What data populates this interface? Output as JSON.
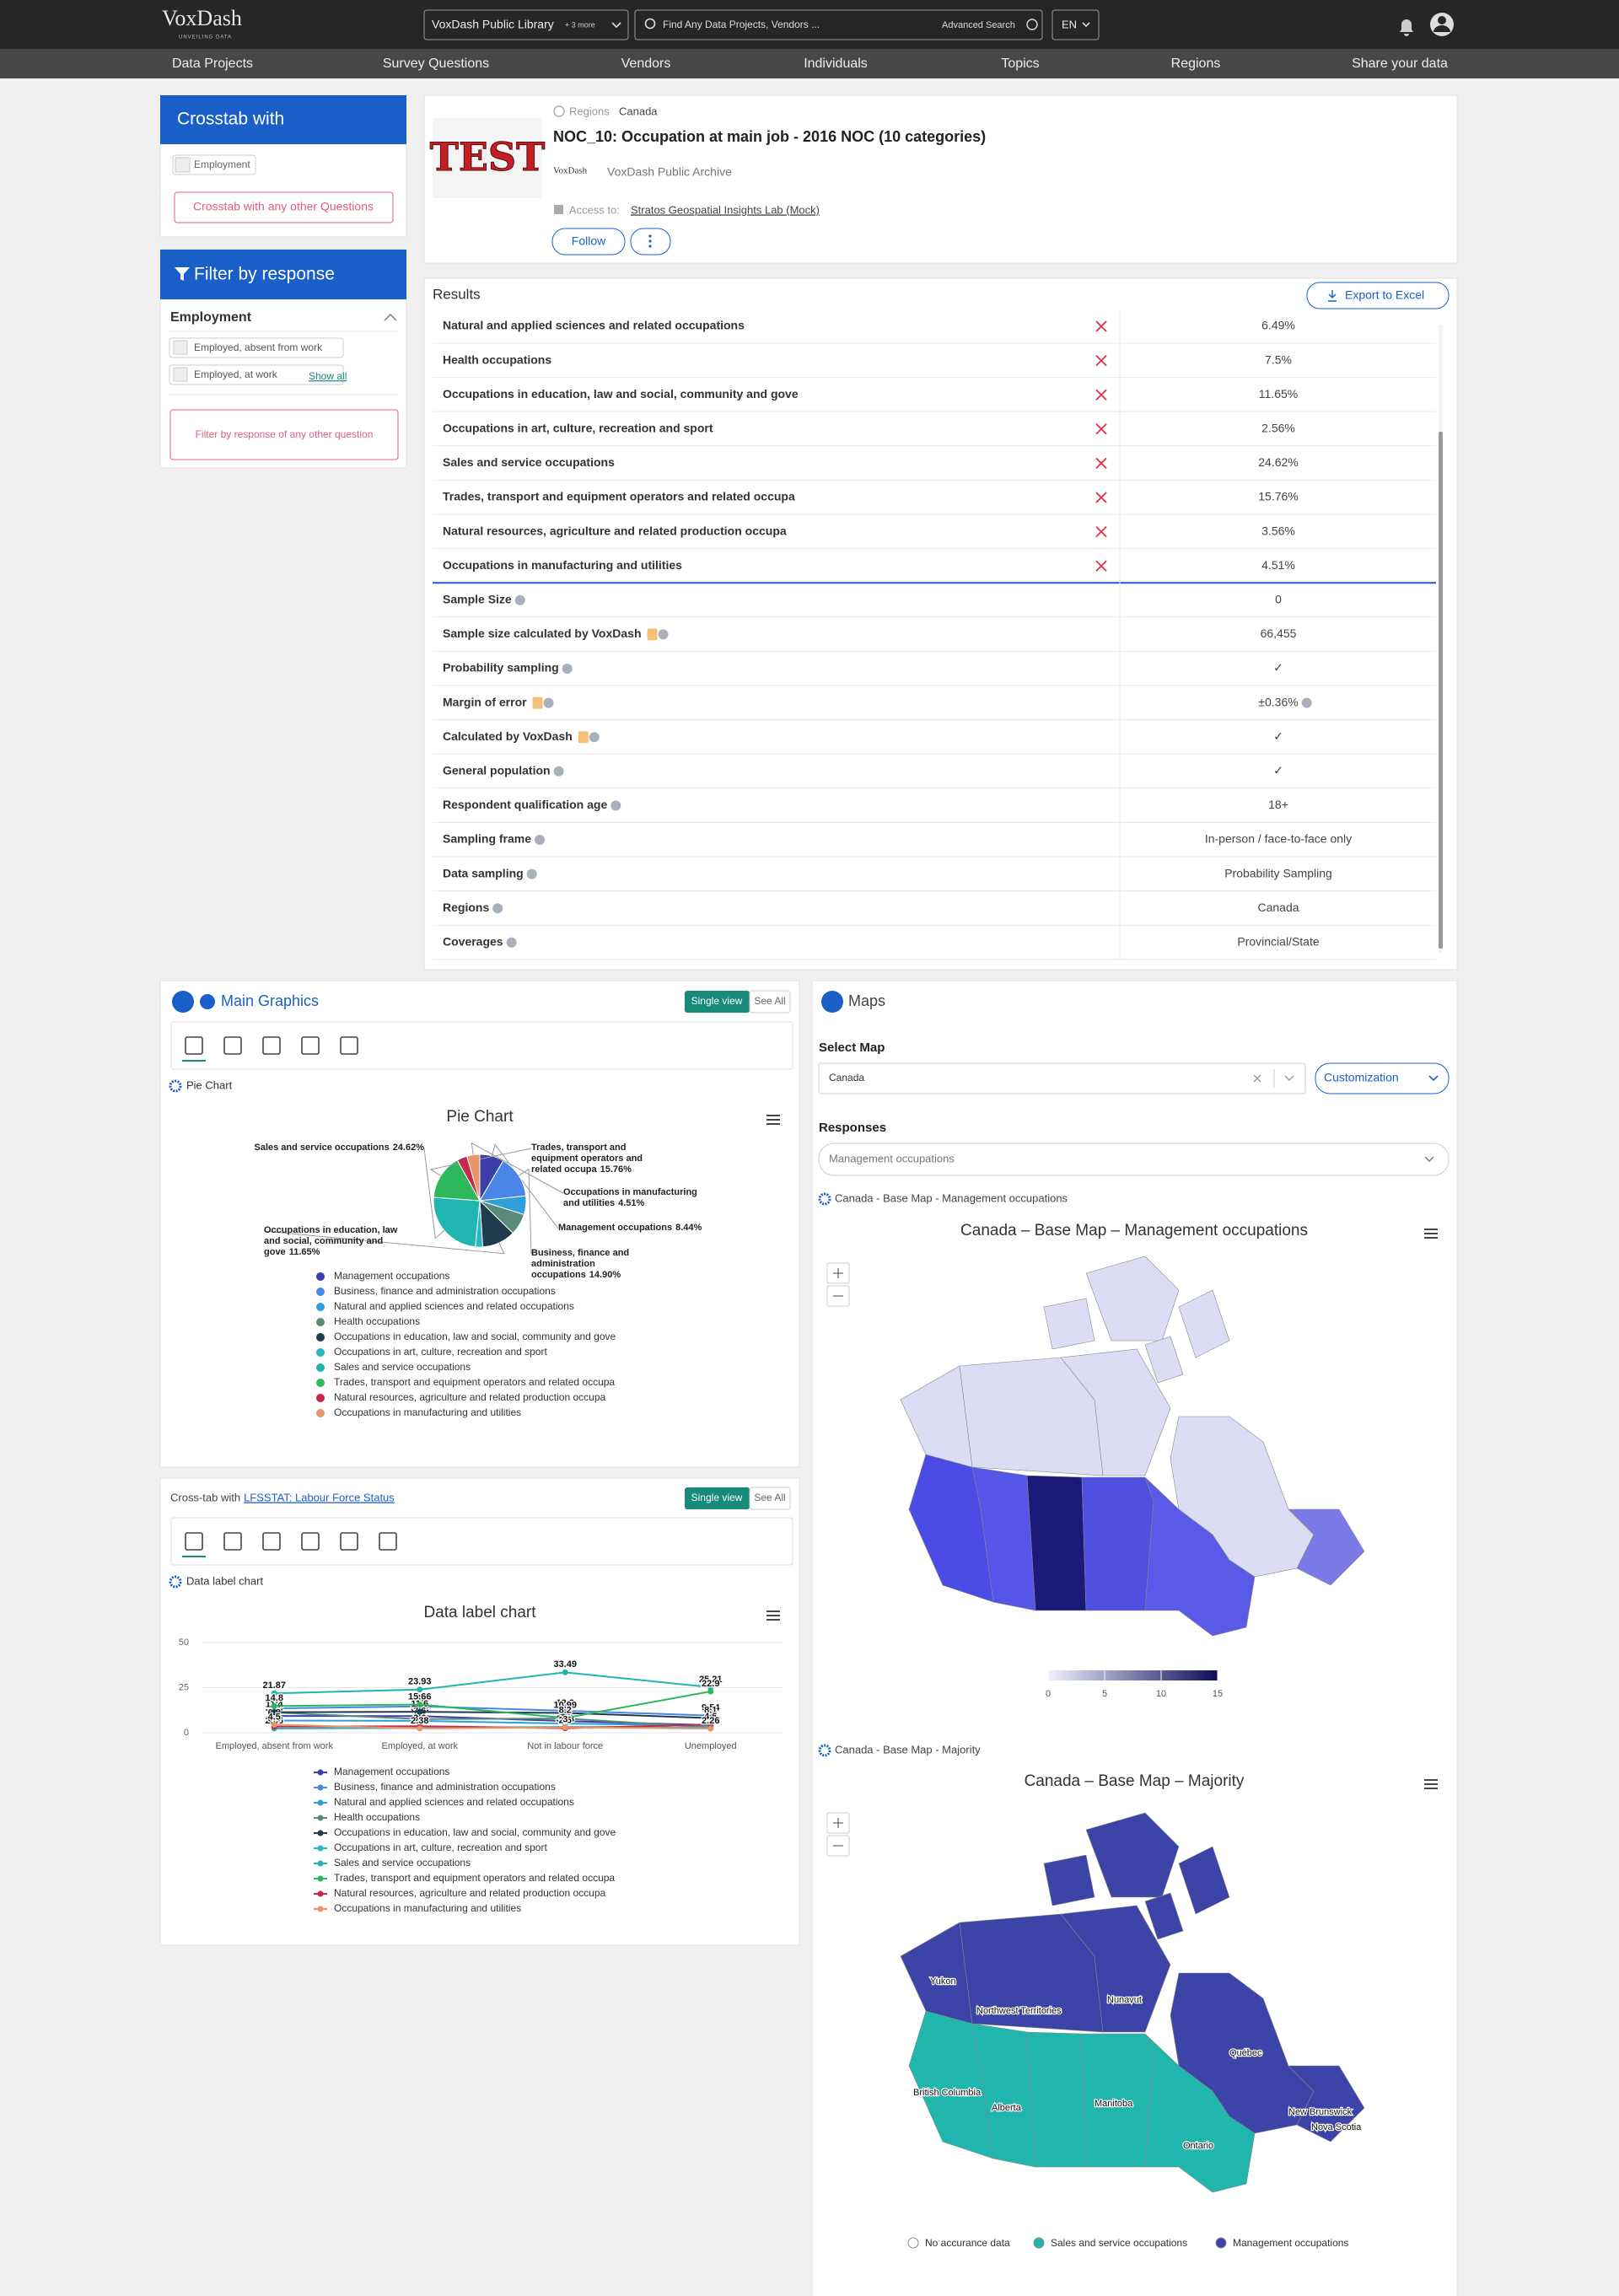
{
  "header": {
    "logo": "VoxDash",
    "logo_sub": "UNVEILING DATA",
    "library": "VoxDash Public Library",
    "library_more": "+ 3 more",
    "search_placeholder": "Find Any Data Projects, Vendors ...",
    "advanced_search": "Advanced Search",
    "language": "EN"
  },
  "nav": [
    "Data Projects",
    "Survey Questions",
    "Vendors",
    "Individuals",
    "Topics",
    "Regions",
    "Share your data"
  ],
  "crosstab": {
    "title": "Crosstab with",
    "chip": "Employment",
    "button": "Crosstab with any other Questions"
  },
  "filter": {
    "title": "Filter by response",
    "group": "Employment",
    "options": [
      "Employed, absent from work",
      "Employed, at work"
    ],
    "show_all": "Show all",
    "button": "Filter by response of any other question"
  },
  "question": {
    "image_text": "TEST",
    "regions_label": "Regions",
    "region": "Canada",
    "title": "NOC_10: Occupation at main job - 2016 NOC (10 categories)",
    "archive_logo": "VoxDash",
    "archive": "VoxDash Public Archive",
    "access_label": "Access to:",
    "access": "Stratos Geospatial Insights Lab (Mock)",
    "follow": "Follow"
  },
  "results": {
    "title": "Results",
    "export": "Export to Excel",
    "rows": [
      [
        "Natural and applied sciences and related occupations",
        "6.49%"
      ],
      [
        "Health occupations",
        "7.5%"
      ],
      [
        "Occupations in education, law and social, community and gove",
        "11.65%"
      ],
      [
        "Occupations in art, culture, recreation and sport",
        "2.56%"
      ],
      [
        "Sales and service occupations",
        "24.62%"
      ],
      [
        "Trades, transport and equipment operators and related occupa",
        "15.76%"
      ],
      [
        "Natural resources, agriculture and related production occupa",
        "3.56%"
      ],
      [
        "Occupations in manufacturing and utilities",
        "4.51%"
      ]
    ],
    "stats": [
      [
        "Sample Size",
        "0"
      ],
      [
        "Sample size calculated by VoxDash",
        "66,455"
      ],
      [
        "Probability sampling",
        "✓"
      ],
      [
        "Margin of error",
        "±0.36%"
      ],
      [
        "Calculated by VoxDash",
        "✓"
      ],
      [
        "General population",
        "✓"
      ],
      [
        "Respondent qualification age",
        "18+"
      ],
      [
        "Sampling frame",
        "In-person / face-to-face only"
      ],
      [
        "Data sampling",
        "Probability Sampling"
      ],
      [
        "Regions",
        "Canada"
      ],
      [
        "Coverages",
        "Provincial/State"
      ]
    ]
  },
  "main_graphics": {
    "title": "Main Graphics",
    "single_view": "Single view",
    "see_all": "See All",
    "chart_label": "Pie Chart"
  },
  "crosstab_chart": {
    "prefix": "Cross-tab with",
    "link": "LFSSTAT: Labour Force Status",
    "single_view": "Single view",
    "see_all": "See All",
    "chart_label": "Data label chart"
  },
  "maps": {
    "title": "Maps",
    "select_label": "Select Map",
    "select_value": "Canada",
    "customization": "Customization",
    "responses_label": "Responses",
    "responses_value": "Management occupations",
    "map1_label": "Canada - Base Map - Management occupations",
    "map1_title": "Canada – Base Map – Management occupations",
    "color_range": [
      0,
      15
    ],
    "legend_ticks": [
      0,
      5,
      10,
      15
    ],
    "map2_label": "Canada - Base Map - Majority",
    "map2_title": "Canada – Base Map – Majority",
    "province_labels": [
      "Yukon",
      "Northwest Territories",
      "Nunavut",
      "Québec",
      "British Columbia",
      "Alberta",
      "Manitoba",
      "Ontario",
      "New Brunswick",
      "Nova Scotia"
    ],
    "legend": [
      {
        "name": "No accurance data",
        "color": "#ffffff"
      },
      {
        "name": "Sales and service occupations",
        "color": "#20b5ad"
      },
      {
        "name": "Management occupations",
        "color": "#3d44a8"
      }
    ]
  },
  "chart_data": [
    {
      "type": "pie",
      "title": "Pie Chart",
      "categories": [
        "Management occupations",
        "Business, finance and administration occupations",
        "Natural and applied sciences and related occupations",
        "Health occupations",
        "Occupations in education, law and social, community and gove",
        "Occupations in art, culture, recreation and sport",
        "Sales and service occupations",
        "Trades, transport and equipment operators and related occupa",
        "Natural resources, agriculture and related production occupa",
        "Occupations in manufacturing and utilities"
      ],
      "values": [
        8.44,
        14.9,
        6.49,
        7.5,
        11.65,
        2.56,
        24.62,
        15.76,
        3.56,
        4.51
      ],
      "value_labels": [
        "8.44%",
        "14.90%",
        null,
        null,
        "11.65%",
        null,
        "24.62%",
        "15.76%",
        null,
        "4.51%"
      ],
      "colors": [
        "#3b3ea8",
        "#4a86e8",
        "#2e9fd8",
        "#5b8a7a",
        "#1f3b4d",
        "#2bb5c9",
        "#1fb5b0",
        "#2eb85c",
        "#c8284a",
        "#e8956a"
      ]
    },
    {
      "type": "line",
      "title": "Data label chart",
      "categories": [
        "Employed, absent from work",
        "Employed, at work",
        "Not in labour force",
        "Unemployed"
      ],
      "ylim": [
        0,
        50
      ],
      "yticks": [
        0,
        25,
        50
      ],
      "series": [
        {
          "name": "Management occupations",
          "color": "#3b3ea8",
          "values": [
            9.29,
            9.21,
            6.5,
            4.2
          ]
        },
        {
          "name": "Business, finance and administration occupations",
          "color": "#4a86e8",
          "values": [
            13.5,
            14.6,
            12.2,
            9.54
          ]
        },
        {
          "name": "Natural and applied sciences and related occupations",
          "color": "#2e9fd8",
          "values": [
            6.8,
            6.6,
            5.1,
            4.0
          ]
        },
        {
          "name": "Health occupations",
          "color": "#5b8a7a",
          "values": [
            11.2,
            7.6,
            7.9,
            3.0
          ]
        },
        {
          "name": "Occupations in education, law and social, community and gove",
          "color": "#1f3b4d",
          "values": [
            11.4,
            11.6,
            10.99,
            8.1
          ]
        },
        {
          "name": "Occupations in art, culture, recreation and sport",
          "color": "#2bb5c9",
          "values": [
            2.36,
            2.6,
            3.28,
            2.9
          ]
        },
        {
          "name": "Sales and service occupations",
          "color": "#1fb5b0",
          "values": [
            21.87,
            23.93,
            33.49,
            25.21
          ]
        },
        {
          "name": "Trades, transport and equipment operators and related occupa",
          "color": "#2eb85c",
          "values": [
            14.8,
            15.66,
            8.2,
            22.9
          ]
        },
        {
          "name": "Natural resources, agriculture and related production occupa",
          "color": "#c8284a",
          "values": [
            3.4,
            3.6,
            2.5,
            4.6
          ]
        },
        {
          "name": "Occupations in manufacturing and utilities",
          "color": "#e8956a",
          "values": [
            4.5,
            2.38,
            3.0,
            2.26
          ]
        }
      ]
    }
  ]
}
